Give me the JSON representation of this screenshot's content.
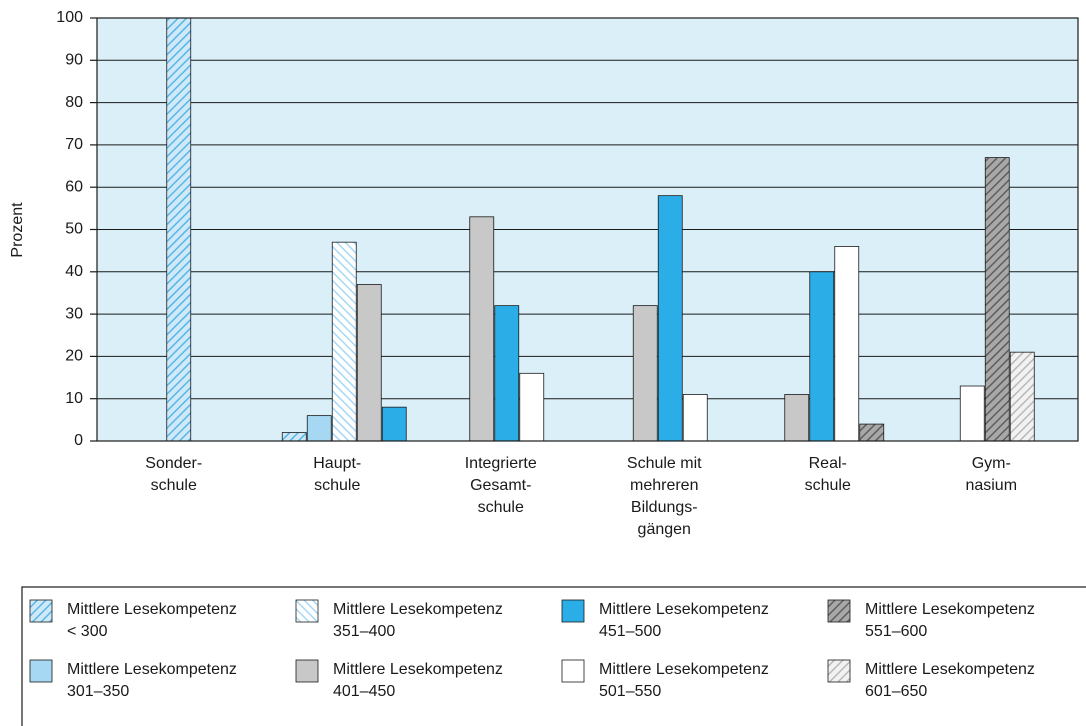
{
  "chart_data": {
    "type": "bar",
    "y_label": "Prozent",
    "categories": [
      "Sonder-\nschule",
      "Haupt-\nschule",
      "Integrierte\nGesamt-\nschule",
      "Schule mit\nmehreren\nBildungs-\ngängen",
      "Real-\nschule",
      "Gym-\nnasium"
    ],
    "series": [
      {
        "name": "Mittlere Lesekompetenz\n< 300",
        "color": "#cfe9f8",
        "hatch": "#58b6e6",
        "hatch_angle": 45,
        "values": [
          100,
          2,
          null,
          null,
          null,
          null
        ]
      },
      {
        "name": "Mittlere Lesekompetenz\n301–350",
        "color": "#a6d8f3",
        "values": [
          null,
          6,
          null,
          null,
          null,
          null
        ]
      },
      {
        "name": "Mittlere Lesekompetenz\n351–400",
        "color": "#ffffff",
        "hatch": "#a6d8f3",
        "hatch_angle": -45,
        "values": [
          null,
          47,
          null,
          null,
          null,
          null
        ]
      },
      {
        "name": "Mittlere Lesekompetenz\n401–450",
        "color": "#c8c8c8",
        "values": [
          null,
          37,
          53,
          32,
          11,
          null
        ]
      },
      {
        "name": "Mittlere Lesekompetenz\n451–500",
        "color": "#2baee8",
        "values": [
          null,
          8,
          32,
          58,
          40,
          null
        ]
      },
      {
        "name": "Mittlere Lesekompetenz\n501–550",
        "color": "#ffffff",
        "values": [
          null,
          null,
          16,
          11,
          46,
          13
        ]
      },
      {
        "name": "Mittlere Lesekompetenz\n551–600",
        "color": "#a8a8a8",
        "hatch": "#5e5e5e",
        "hatch_angle": 45,
        "values": [
          null,
          null,
          null,
          null,
          4,
          67
        ]
      },
      {
        "name": "Mittlere Lesekompetenz\n601–650",
        "color": "#f2f2f2",
        "hatch": "#b8b8b8",
        "hatch_angle": 45,
        "values": [
          null,
          null,
          null,
          null,
          null,
          21
        ]
      }
    ],
    "ylim": [
      0,
      100
    ],
    "yticks": [
      0,
      10,
      20,
      30,
      40,
      50,
      60,
      70,
      80,
      90,
      100
    ],
    "grid": true
  }
}
